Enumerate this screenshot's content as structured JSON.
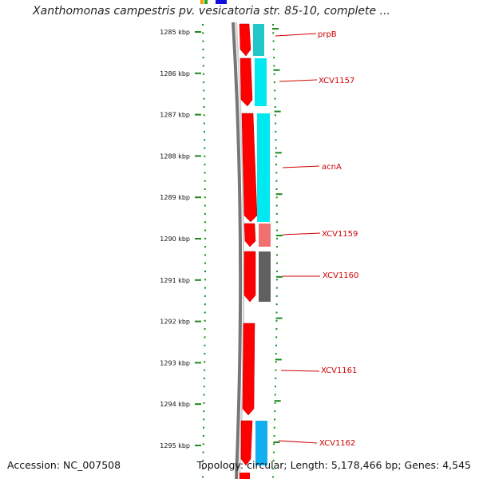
{
  "title": "Xanthomonas campestris pv. vesicatoria str. 85-10, complete ...",
  "accession": "Accession: NC_007508",
  "topology": "Topology: circular; Length: 5,178,466 bp; Genes: 4,545",
  "axis_labels": [
    "1285 kbp",
    "1286 kbp",
    "1287 kbp",
    "1288 kbp",
    "1289 kbp",
    "1290 kbp",
    "1291 kbp",
    "1292 kbp",
    "1293 kbp",
    "1294 kbp",
    "1295 kbp"
  ],
  "genes": [
    "prpB",
    "XCV1157",
    "acnA",
    "XCV1159",
    "XCV1160",
    "XCV1161",
    "XCV1162"
  ],
  "colors": {
    "cds": "#ff0000",
    "cog_teal": "#22c8c8",
    "cog_cyan": "#00e8f0",
    "cog_salmon": "#f07070",
    "cog_gray": "#606060",
    "cog_blue": "#10b0f0",
    "ticks": "#1a8a1a",
    "backbone": "#888888",
    "label": "#d00000"
  }
}
